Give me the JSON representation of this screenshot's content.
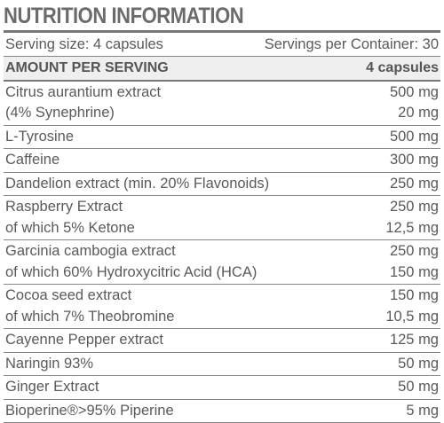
{
  "title": "NUTRITION INFORMATION",
  "serving": {
    "size": "Serving size: 4 capsules",
    "per_container": "Servings per Container: 30"
  },
  "table": {
    "header": [
      "AMOUNT PER SERVING",
      "4 capsules"
    ],
    "rows": [
      [
        [
          "Citrus aurantium extract",
          "500 mg"
        ],
        [
          "(4% Synephrine)",
          "20 mg"
        ]
      ],
      [
        [
          "L-Tyrosine",
          "500 mg"
        ]
      ],
      [
        [
          "Caffeine",
          "300 mg"
        ]
      ],
      [
        [
          "Dandelion extract (min. 20% Flavonoids)",
          "250 mg"
        ]
      ],
      [
        [
          "Raspberry Extract",
          "250 mg"
        ],
        [
          "of which 5% Ketone",
          "12,5 mg"
        ]
      ],
      [
        [
          "Garcinia cambogia extract",
          "250 mg"
        ],
        [
          "of which 60% Hydroxycitric Acid (HCA)",
          "150 mg"
        ]
      ],
      [
        [
          "Cocoa seed extract",
          "150 mg"
        ],
        [
          "of which 7% Theobromine",
          "10,5 mg"
        ]
      ],
      [
        [
          "Cayenne Pepper extract",
          "125 mg"
        ]
      ],
      [
        [
          "Naringin 93%",
          "50 mg"
        ]
      ],
      [
        [
          "Ginger Extract",
          "50 mg"
        ]
      ],
      [
        [
          "Bioperine®>95% Piperine",
          "5 mg"
        ]
      ]
    ]
  }
}
